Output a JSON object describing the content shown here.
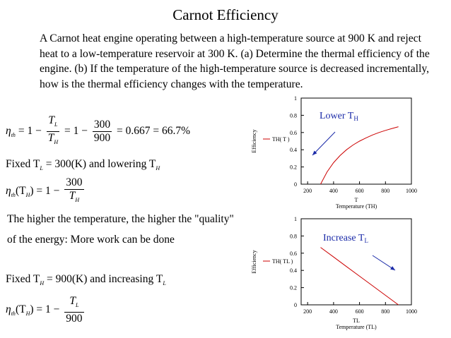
{
  "title": "Carnot Efficiency",
  "problem_text": "A Carnot heat engine operating between a high-temperature source at 900 K and reject heat to a low-temperature reservoir at 300 K.  (a) Determine the thermal efficiency of the engine.  (b) If the temperature of the high-temperature source is decreased incrementally, how is the thermal efficiency changes with the temperature.",
  "equations": {
    "eta": "η",
    "th_sub": "th",
    "equals": "=",
    "one_minus": "1 −",
    "T": "T",
    "L": "L",
    "H": "H",
    "n300": "300",
    "n900": "900",
    "result": "= 0.667 = 66.7%",
    "paren_TH": "(T",
    "paren_close": ")",
    "fixed_tl_prefix": "Fixed T",
    "fixed_tl_suffix": "= 300(K) and lowering T",
    "fixed_th_prefix": "Fixed T",
    "fixed_th_suffix": "= 900(K) and increasing T"
  },
  "statement_line1": "The higher the temperature, the higher the \"quality\"",
  "statement_line2": "of the energy: More work can be done",
  "chart_data": [
    {
      "type": "line",
      "ylabel": "Efficiency",
      "xlabel_top": "T",
      "xlabel_bottom": "Temperature (TH)",
      "legend": "TH( T )",
      "annotation": "Lower T",
      "annotation_sub": "H",
      "annotation_color": "#1a2aa8",
      "line_color": "#cc0000",
      "xlim": [
        150,
        1000
      ],
      "ylim": [
        0,
        1
      ],
      "xticks": [
        "200",
        "400",
        "600",
        "800",
        "1000"
      ],
      "yticks": [
        "0",
        "0.2",
        "0.4",
        "0.6",
        "0.8",
        "1"
      ],
      "x": [
        300,
        350,
        400,
        450,
        500,
        550,
        600,
        650,
        700,
        750,
        800,
        850,
        900
      ],
      "y": [
        0.0,
        0.143,
        0.25,
        0.333,
        0.4,
        0.455,
        0.5,
        0.538,
        0.571,
        0.6,
        0.625,
        0.647,
        0.667
      ]
    },
    {
      "type": "line",
      "ylabel": "Efficiency",
      "xlabel_top": "TL",
      "xlabel_bottom": "Temperature (TL)",
      "legend": "TH( TL )",
      "annotation": "Increase T",
      "annotation_sub": "L",
      "annotation_color": "#1a2aa8",
      "line_color": "#cc0000",
      "xlim": [
        150,
        1000
      ],
      "ylim": [
        0,
        1
      ],
      "xticks": [
        "200",
        "400",
        "600",
        "800",
        "1000"
      ],
      "yticks": [
        "0",
        "0.2",
        "0.4",
        "0.6",
        "0.8",
        "1"
      ],
      "x": [
        300,
        400,
        500,
        600,
        700,
        800,
        900
      ],
      "y": [
        0.667,
        0.556,
        0.444,
        0.333,
        0.222,
        0.111,
        0.0
      ]
    }
  ]
}
